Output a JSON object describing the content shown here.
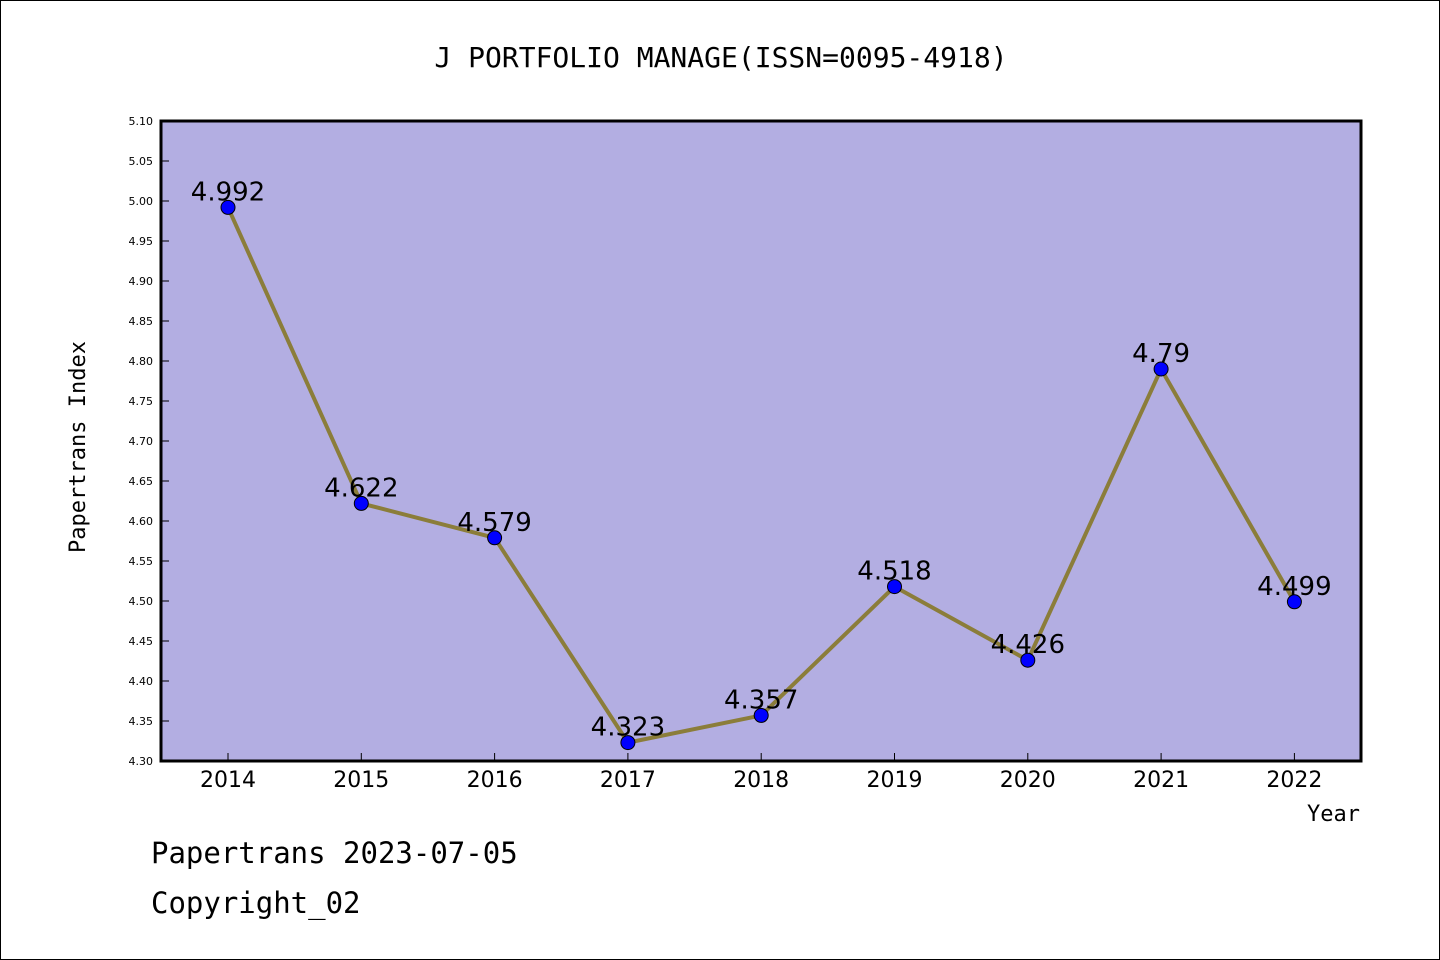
{
  "chart_data": {
    "type": "line",
    "title": "J PORTFOLIO MANAGE(ISSN=0095-4918)",
    "xlabel": "Year",
    "ylabel": "Papertrans Index",
    "categories": [
      "2014",
      "2015",
      "2016",
      "2017",
      "2018",
      "2019",
      "2020",
      "2021",
      "2022"
    ],
    "series": [
      {
        "values": [
          4.992,
          4.622,
          4.579,
          4.323,
          4.357,
          4.518,
          4.426,
          4.79,
          4.499
        ],
        "labels": [
          "4.992",
          "4.622",
          "4.579",
          "4.323",
          "4.357",
          "4.518",
          "4.426",
          "4.79",
          "4.499"
        ]
      }
    ],
    "ylim": [
      4.3,
      5.1
    ],
    "yticks": [
      "4.30",
      "4.35",
      "4.40",
      "4.45",
      "4.50",
      "4.55",
      "4.60",
      "4.65",
      "4.70",
      "4.75",
      "4.80",
      "4.85",
      "4.90",
      "4.95",
      "5.00",
      "5.05",
      "5.10"
    ],
    "grid": false,
    "colors": {
      "plot_background": "#b3aee2",
      "line": "#8b7d3a",
      "marker": "#0000ff"
    }
  },
  "footer": {
    "line1": "Papertrans 2023-07-05",
    "line2": "Copyright_02"
  }
}
